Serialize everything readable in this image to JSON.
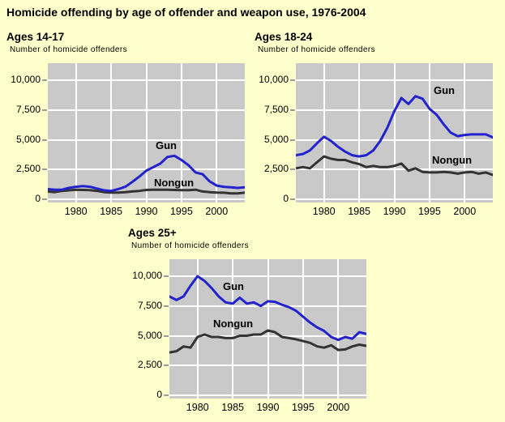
{
  "title": "Homicide offending by age of offender and weapon use, 1976-2004",
  "colors": {
    "background": "#FFFFCC",
    "plot_background": "#C9C9C9",
    "gridline": "#FFFFFF",
    "gun_line": "#2323CD",
    "nongun_line": "#333333",
    "text": "#000000",
    "tick_mark": "#9B9B9B"
  },
  "axis": {
    "y_tick_labels": [
      "10,000",
      "7,500",
      "5,000",
      "2,500",
      "0"
    ],
    "y_tick_values": [
      10000,
      7500,
      5000,
      2500,
      0
    ],
    "x_tick_labels": [
      "1980",
      "1985",
      "1990",
      "1995",
      "2000"
    ],
    "x_tick_values": [
      1980,
      1985,
      1990,
      1995,
      2000
    ],
    "years": [
      1976,
      1977,
      1978,
      1979,
      1980,
      1981,
      1982,
      1983,
      1984,
      1985,
      1986,
      1987,
      1988,
      1989,
      1990,
      1991,
      1992,
      1993,
      1994,
      1995,
      1996,
      1997,
      1998,
      1999,
      2000,
      2001,
      2002,
      2003,
      2004
    ]
  },
  "chart_data": [
    {
      "type": "line",
      "title": "Ages 14-17",
      "ylabel_note": "Number of homicide offenders",
      "x_start": 1976,
      "x_end": 2004,
      "x_interval": 1,
      "ylim": [
        0,
        10000
      ],
      "grid": true,
      "series": [
        {
          "name": "Gun",
          "color_key": "gun_line",
          "values": [
            850,
            800,
            800,
            950,
            1050,
            1100,
            1050,
            900,
            750,
            700,
            850,
            1050,
            1450,
            1900,
            2400,
            2700,
            3000,
            3550,
            3650,
            3300,
            2850,
            2250,
            2100,
            1500,
            1150,
            1050,
            1000,
            950,
            1000
          ]
        },
        {
          "name": "Nongun",
          "color_key": "nongun_line",
          "values": [
            650,
            600,
            700,
            750,
            800,
            780,
            760,
            700,
            600,
            560,
            560,
            600,
            650,
            700,
            780,
            800,
            800,
            800,
            780,
            760,
            760,
            800,
            650,
            600,
            560,
            550,
            500,
            500,
            550
          ]
        }
      ]
    },
    {
      "type": "line",
      "title": "Ages 18-24",
      "ylabel_note": "Number of homicide offenders",
      "x_start": 1976,
      "x_end": 2004,
      "x_interval": 1,
      "ylim": [
        0,
        10000
      ],
      "grid": true,
      "series": [
        {
          "name": "Gun",
          "color_key": "gun_line",
          "values": [
            3700,
            3800,
            4100,
            4700,
            5250,
            4900,
            4400,
            4000,
            3700,
            3600,
            3700,
            4100,
            4900,
            6000,
            7400,
            8500,
            8000,
            8650,
            8450,
            7600,
            7100,
            6300,
            5600,
            5300,
            5400,
            5450,
            5450,
            5450,
            5200
          ]
        },
        {
          "name": "Nongun",
          "color_key": "nongun_line",
          "values": [
            2600,
            2700,
            2600,
            3100,
            3600,
            3400,
            3300,
            3300,
            3100,
            2950,
            2700,
            2800,
            2700,
            2700,
            2800,
            3000,
            2400,
            2600,
            2300,
            2250,
            2250,
            2300,
            2250,
            2150,
            2250,
            2300,
            2150,
            2250,
            2050
          ]
        }
      ]
    },
    {
      "type": "line",
      "title": "Ages 25+",
      "ylabel_note": "Number of homicide offenders",
      "x_start": 1976,
      "x_end": 2004,
      "x_interval": 1,
      "ylim": [
        0,
        10000
      ],
      "grid": true,
      "series": [
        {
          "name": "Gun",
          "color_key": "gun_line",
          "values": [
            8300,
            8000,
            8300,
            9200,
            10000,
            9600,
            9000,
            8300,
            7800,
            7700,
            8200,
            7700,
            7800,
            7500,
            7900,
            7850,
            7600,
            7400,
            7100,
            6600,
            6100,
            5700,
            5400,
            4900,
            4650,
            4900,
            4750,
            5300,
            5150
          ]
        },
        {
          "name": "Nongun",
          "color_key": "nongun_line",
          "values": [
            3600,
            3700,
            4100,
            4000,
            4900,
            5100,
            4900,
            4900,
            4800,
            4800,
            5000,
            5000,
            5100,
            5100,
            5450,
            5300,
            4900,
            4800,
            4700,
            4550,
            4400,
            4100,
            4000,
            4200,
            3800,
            3850,
            4100,
            4250,
            4150
          ]
        }
      ]
    }
  ]
}
